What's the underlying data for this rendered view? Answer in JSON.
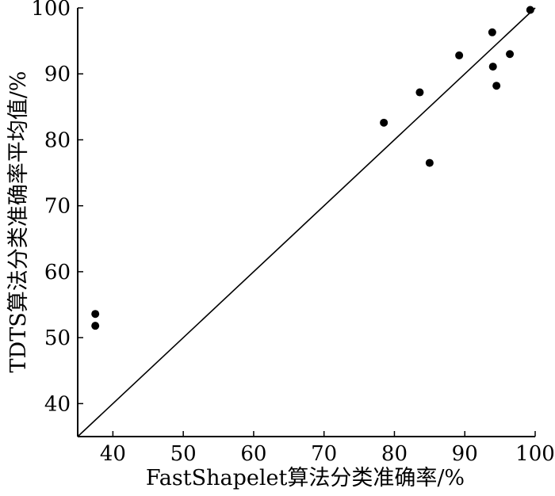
{
  "chart_data": {
    "type": "scatter",
    "xlabel": "FastShapelet算法分类准确率/%",
    "ylabel": "TDTS算法分类准确率平均值/%",
    "xlim": [
      35,
      100
    ],
    "ylim": [
      35,
      100
    ],
    "x_ticks": [
      40,
      50,
      60,
      70,
      80,
      90,
      100
    ],
    "y_ticks": [
      40,
      50,
      60,
      70,
      80,
      90,
      100
    ],
    "x_tick_labels": [
      "40",
      "50",
      "60",
      "70",
      "80",
      "90",
      "100"
    ],
    "y_tick_labels": [
      "40",
      "50",
      "60",
      "70",
      "80",
      "90",
      "100"
    ],
    "grid": false,
    "diagonal_line": true,
    "points": [
      {
        "x": 37.5,
        "y": 53.6
      },
      {
        "x": 37.5,
        "y": 51.8
      },
      {
        "x": 78.5,
        "y": 82.6
      },
      {
        "x": 83.6,
        "y": 87.2
      },
      {
        "x": 85.0,
        "y": 76.5
      },
      {
        "x": 89.2,
        "y": 92.8
      },
      {
        "x": 93.9,
        "y": 96.3
      },
      {
        "x": 94.0,
        "y": 91.1
      },
      {
        "x": 94.5,
        "y": 88.2
      },
      {
        "x": 96.4,
        "y": 93.0
      },
      {
        "x": 99.3,
        "y": 99.7
      }
    ]
  }
}
